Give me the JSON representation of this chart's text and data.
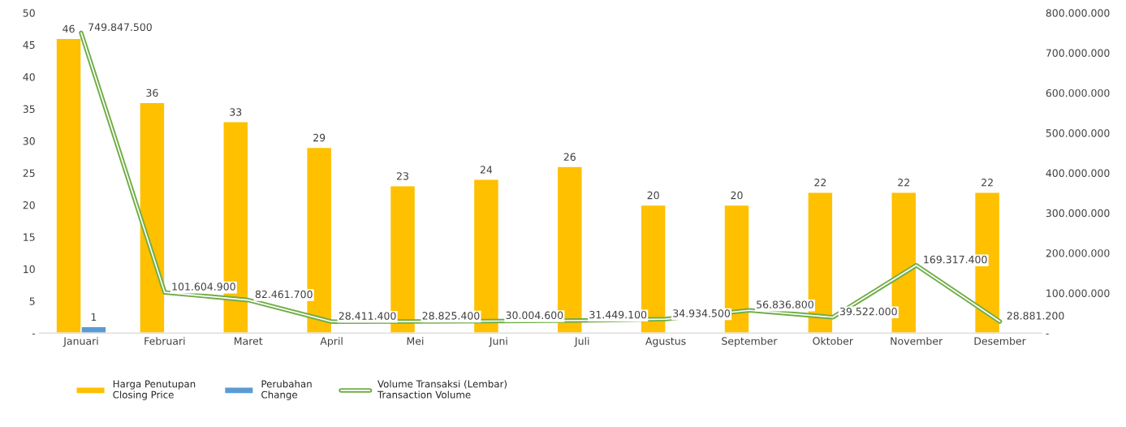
{
  "chart_data": {
    "type": "bar",
    "categories": [
      "Januari",
      "Februari",
      "Maret",
      "April",
      "Mei",
      "Juni",
      "Juli",
      "Agustus",
      "September",
      "Oktober",
      "November",
      "Desember"
    ],
    "series": [
      {
        "name": "Harga Penutupan\nClosing Price",
        "color": "#ffc000",
        "values": [
          46,
          36,
          33,
          29,
          23,
          24,
          26,
          20,
          20,
          22,
          22,
          22
        ],
        "value_labels": [
          "46",
          "36",
          "33",
          "29",
          "23",
          "24",
          "26",
          "20",
          "20",
          "22",
          "22",
          "22"
        ]
      },
      {
        "name": "Perubahan\nChange",
        "color": "#5b9bd5",
        "values": [
          1,
          null,
          null,
          null,
          null,
          null,
          null,
          null,
          null,
          null,
          null,
          null
        ],
        "value_labels": [
          "1",
          null,
          null,
          null,
          null,
          null,
          null,
          null,
          null,
          null,
          null,
          null
        ]
      },
      {
        "name": "Volume Transaksi (Lembar)\nTransaction Volume",
        "type": "line",
        "axis": "y2",
        "color": "#70ad47",
        "values": [
          749847500,
          101604900,
          82461700,
          28411400,
          28825400,
          30004600,
          31449100,
          34934500,
          56836800,
          39522000,
          169317400,
          28881200
        ],
        "value_labels": [
          "749.847.500",
          "101.604.900",
          "82.461.700",
          "28.411.400",
          "28.825.400",
          "30.004.600",
          "31.449.100",
          "34.934.500",
          "56.836.800",
          "39.522.000",
          "169.317.400",
          "28.881.200"
        ]
      }
    ],
    "ylim": [
      0,
      50
    ],
    "yticks": [
      {
        "value": 0,
        "label": "-"
      },
      5,
      10,
      15,
      20,
      25,
      30,
      35,
      40,
      45,
      50
    ],
    "y2lim": [
      0,
      800000000
    ],
    "y2ticks": [
      {
        "value": 0,
        "label": "-"
      },
      {
        "value": 100000000,
        "label": "100.000.000"
      },
      {
        "value": 200000000,
        "label": "200.000.000"
      },
      {
        "value": 300000000,
        "label": "300.000.000"
      },
      {
        "value": 400000000,
        "label": "400.000.000"
      },
      {
        "value": 500000000,
        "label": "500.000.000"
      },
      {
        "value": 600000000,
        "label": "600.000.000"
      },
      {
        "value": 700000000,
        "label": "700.000.000"
      },
      {
        "value": 800000000,
        "label": "800.000.000"
      }
    ],
    "legend": "bottom left",
    "marker": "none"
  }
}
